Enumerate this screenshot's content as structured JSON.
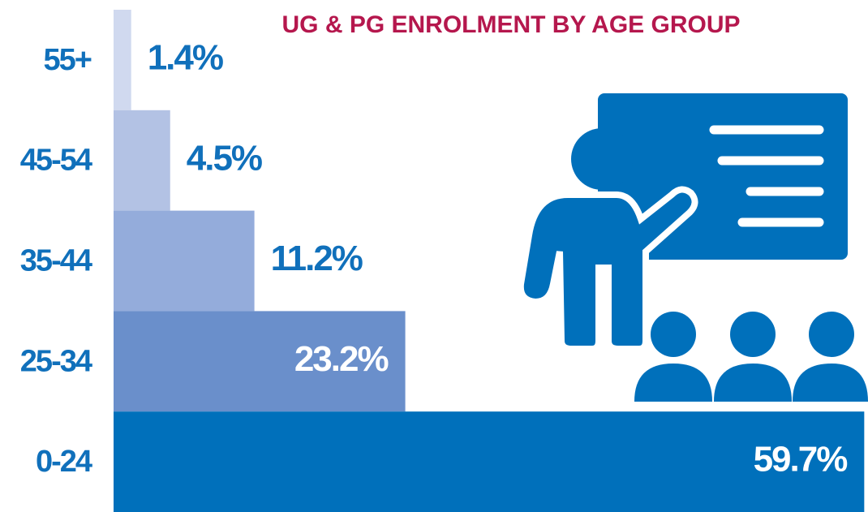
{
  "chart_data": {
    "type": "bar",
    "orientation": "horizontal",
    "title": "UG & PG ENROLMENT BY AGE GROUP",
    "categories": [
      "55+",
      "45-54",
      "35-44",
      "25-34",
      "0-24"
    ],
    "values": [
      1.4,
      4.5,
      11.2,
      23.2,
      59.7
    ],
    "value_labels": [
      "1.4%",
      "4.5%",
      "11.2%",
      "23.2%",
      "59.7%"
    ],
    "colors": [
      "#d0d9ef",
      "#b3c2e4",
      "#94acdb",
      "#6a8fcb",
      "#0070bb"
    ],
    "xlim": [
      0,
      60
    ]
  }
}
